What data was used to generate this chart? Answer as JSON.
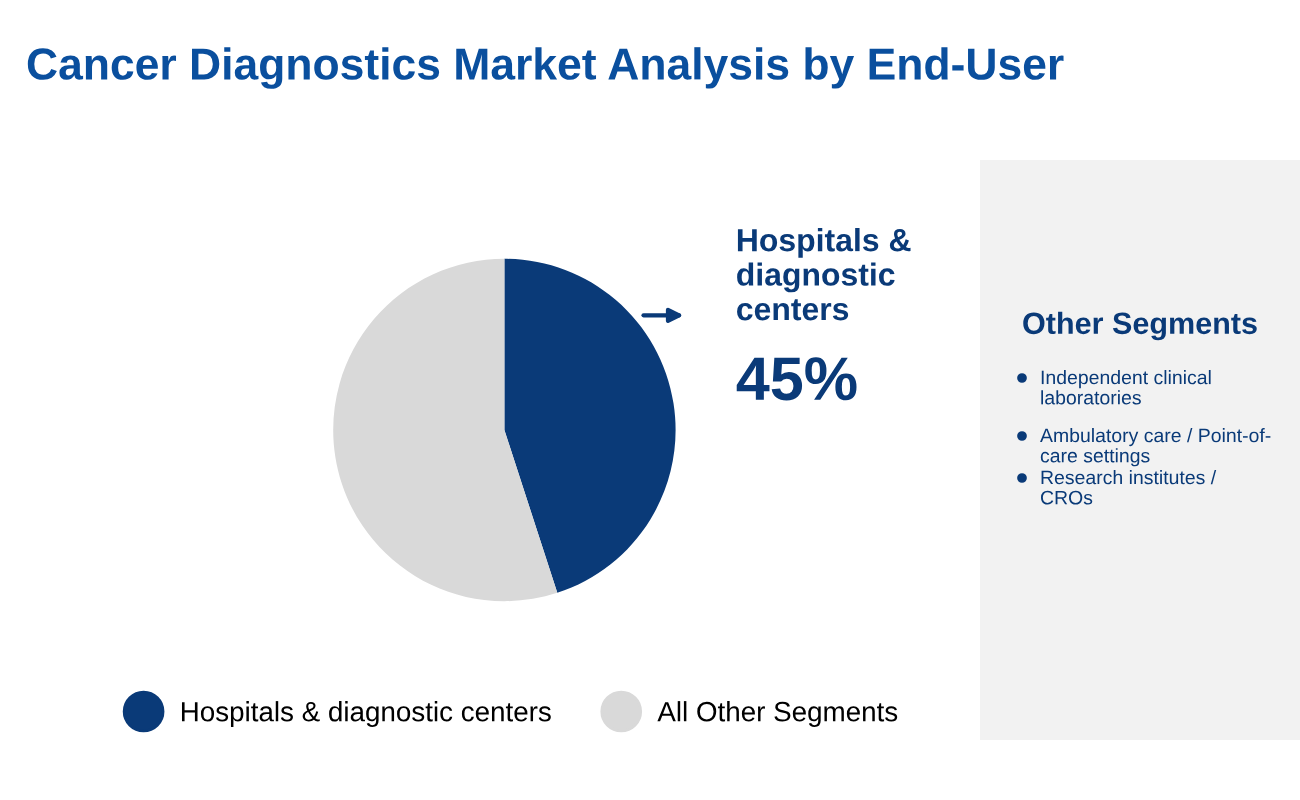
{
  "chart_data": {
    "type": "pie",
    "title": "Cancer Diagnostics Market Analysis by End-User",
    "categories": [
      "Hospitals & diagnostic centers",
      "All Other Segments"
    ],
    "values": [
      45,
      55
    ],
    "colors": [
      "#0a3a78",
      "#d9d9d9"
    ],
    "value_labels": [
      "45%",
      null
    ],
    "legend": "bottom",
    "annotations": [
      "Other Segments",
      "Independent clinical laboratories",
      "Ambulatory care / Point-of-care settings",
      "Research institutes / CROs"
    ]
  }
}
